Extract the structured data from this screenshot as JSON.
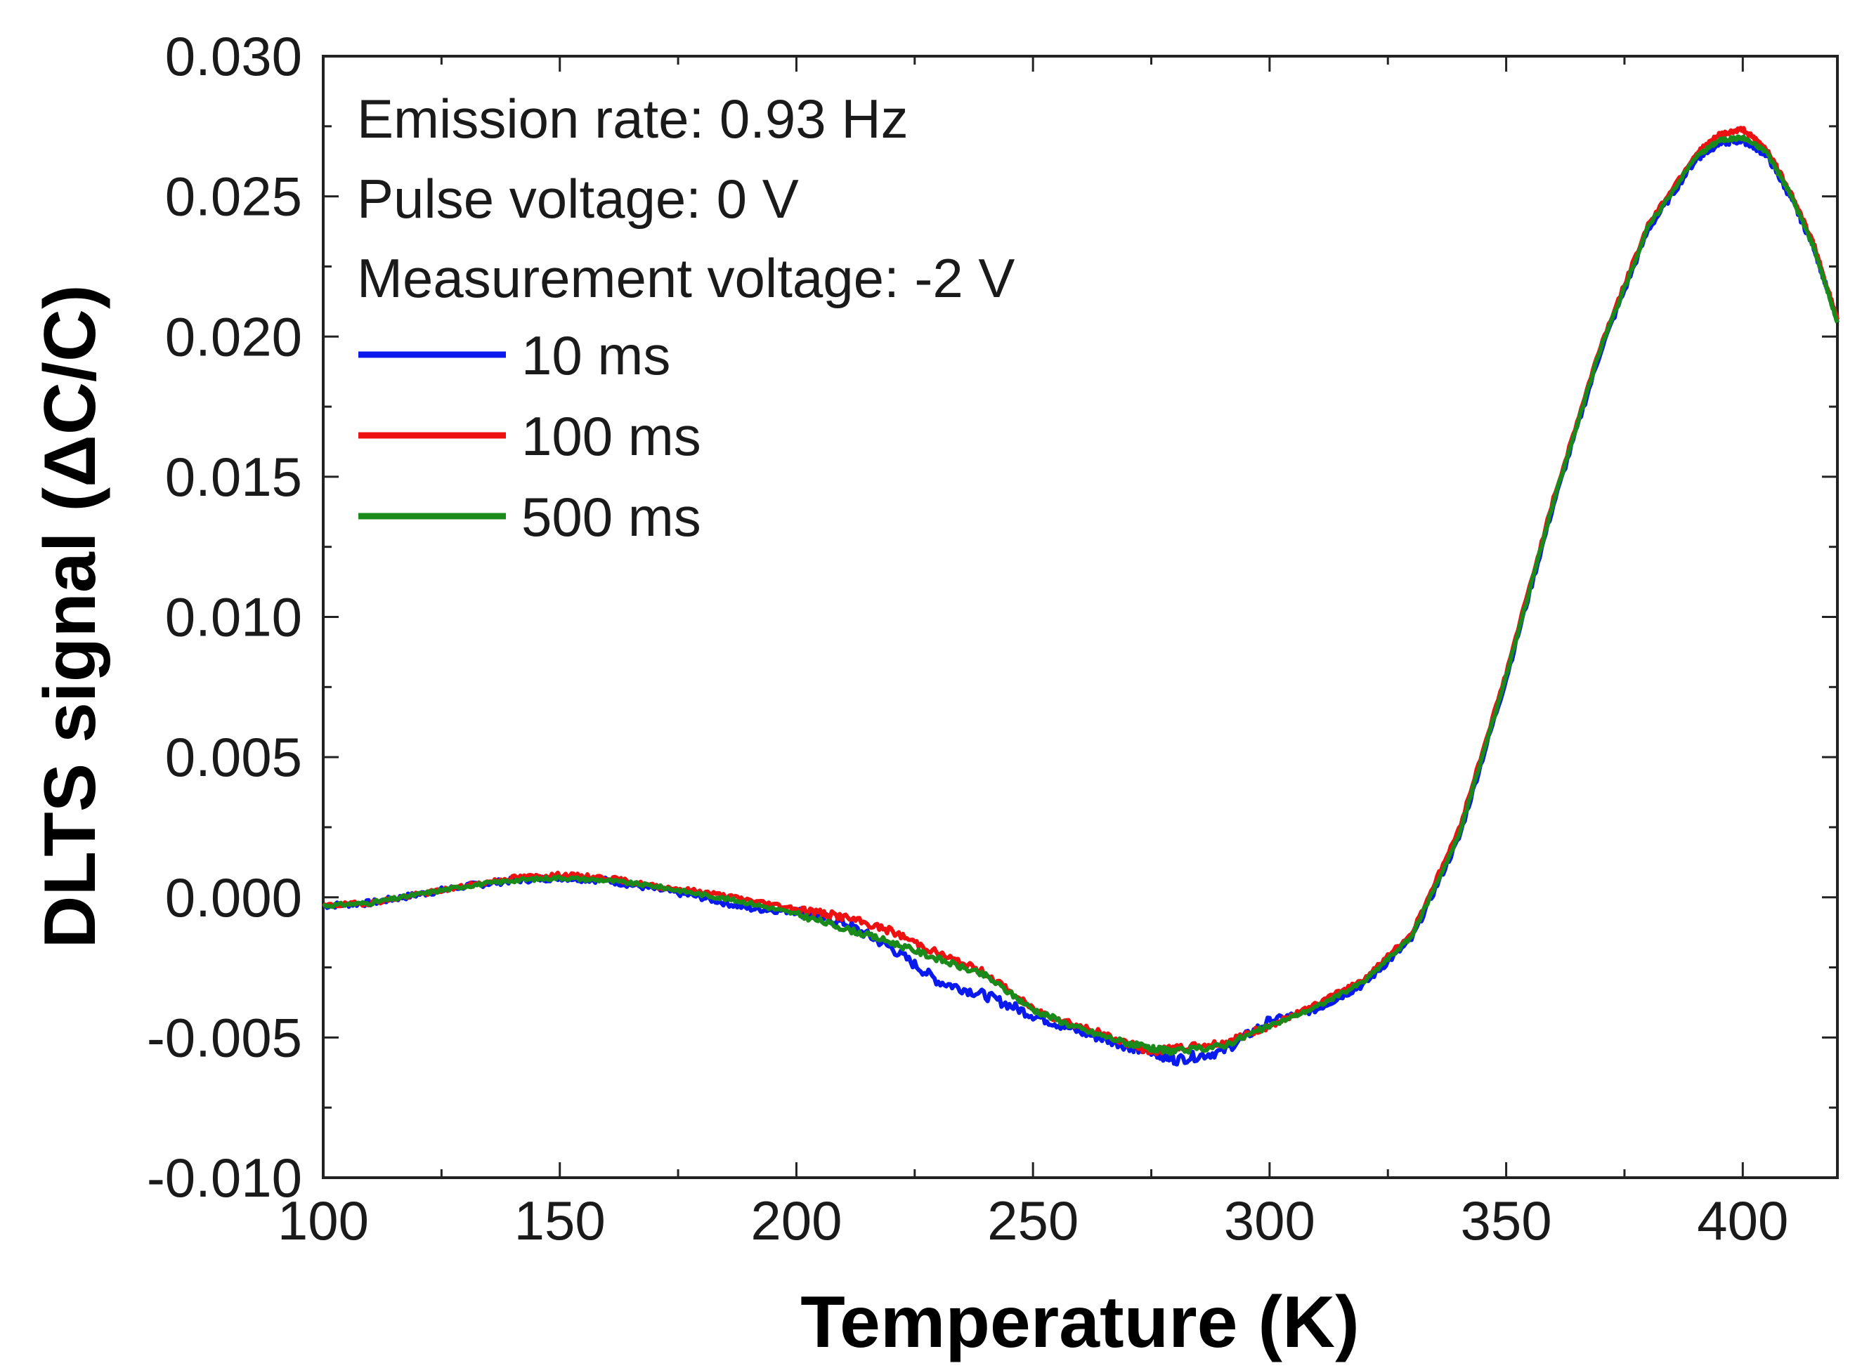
{
  "chart_data": {
    "type": "line",
    "title": "",
    "xlabel": "Temperature (K)",
    "ylabel": "DLTS signal (ΔC/C)",
    "xlim": [
      100,
      420
    ],
    "ylim": [
      -0.01,
      0.03
    ],
    "xticks": [
      100,
      150,
      200,
      250,
      300,
      350,
      400
    ],
    "xtick_labels": [
      "100",
      "150",
      "200",
      "250",
      "300",
      "350",
      "400"
    ],
    "yticks": [
      -0.01,
      -0.005,
      0.0,
      0.005,
      0.01,
      0.015,
      0.02,
      0.025,
      0.03
    ],
    "ytick_labels": [
      "-0.010",
      "-0.005",
      "0.000",
      "0.005",
      "0.010",
      "0.015",
      "0.020",
      "0.025",
      "0.030"
    ],
    "grid": false,
    "annotations": [
      "Emission rate: 0.93 Hz",
      "Pulse voltage: 0 V",
      "Measurement voltage: -2 V"
    ],
    "legend_position": "top-left",
    "x": [
      100,
      110,
      120,
      130,
      140,
      150,
      160,
      170,
      180,
      190,
      200,
      210,
      220,
      230,
      240,
      250,
      260,
      270,
      275,
      280,
      290,
      300,
      310,
      320,
      330,
      340,
      350,
      360,
      370,
      380,
      390,
      395,
      400,
      405,
      410,
      415,
      420
    ],
    "series": [
      {
        "name": "10 ms",
        "color": "#0a1aee",
        "values": [
          -0.0003,
          -0.0002,
          0.0001,
          0.0004,
          0.0006,
          0.0007,
          0.0006,
          0.0003,
          0.0,
          -0.0004,
          -0.0005,
          -0.0009,
          -0.0018,
          -0.003,
          -0.0035,
          -0.0042,
          -0.0048,
          -0.0053,
          -0.0055,
          -0.0058,
          -0.0055,
          -0.0044,
          -0.004,
          -0.0031,
          -0.0015,
          0.0021,
          0.0078,
          0.014,
          0.0195,
          0.0238,
          0.0263,
          0.0269,
          0.027,
          0.0265,
          0.025,
          0.0232,
          0.0205
        ]
      },
      {
        "name": "100 ms",
        "color": "#ee1111",
        "values": [
          -0.0003,
          -0.0002,
          0.0001,
          0.0004,
          0.0007,
          0.0008,
          0.0007,
          0.0004,
          0.0002,
          -0.0001,
          -0.0004,
          -0.0007,
          -0.0012,
          -0.002,
          -0.0027,
          -0.004,
          -0.0046,
          -0.0052,
          -0.0055,
          -0.0054,
          -0.0052,
          -0.0046,
          -0.0038,
          -0.0029,
          -0.0013,
          0.0024,
          0.008,
          0.0142,
          0.0197,
          0.024,
          0.0265,
          0.0272,
          0.0274,
          0.0267,
          0.0252,
          0.0233,
          0.0206
        ]
      },
      {
        "name": "500 ms",
        "color": "#1a8a1a",
        "values": [
          -0.0003,
          -0.0002,
          0.0001,
          0.0004,
          0.0006,
          0.0007,
          0.0006,
          0.0004,
          0.0001,
          -0.0002,
          -0.0006,
          -0.0011,
          -0.0016,
          -0.0022,
          -0.0028,
          -0.004,
          -0.0047,
          -0.0052,
          -0.0054,
          -0.0055,
          -0.0053,
          -0.0046,
          -0.0039,
          -0.003,
          -0.0014,
          0.0022,
          0.0079,
          0.0141,
          0.0196,
          0.0239,
          0.0264,
          0.027,
          0.0271,
          0.0266,
          0.0251,
          0.0232,
          0.0205
        ]
      }
    ]
  }
}
